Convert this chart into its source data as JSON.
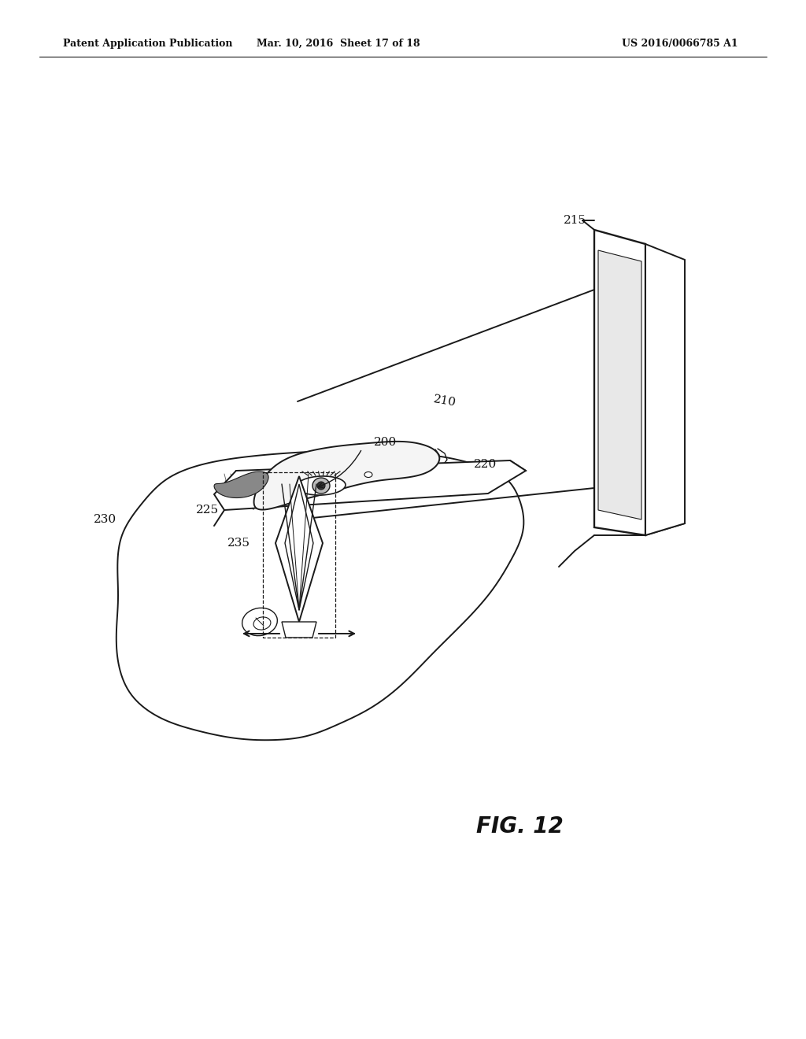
{
  "background_color": "#ffffff",
  "header_left": "Patent Application Publication",
  "header_center": "Mar. 10, 2016  Sheet 17 of 18",
  "header_right": "US 2016/0066785 A1",
  "fig_label": "FIG. 12",
  "line_color": "#1a1a1a",
  "text_color": "#111111",
  "lw": 1.4
}
